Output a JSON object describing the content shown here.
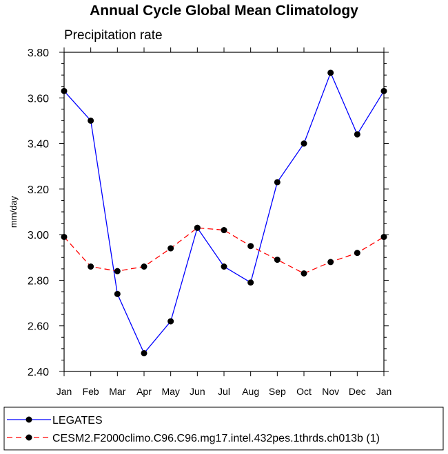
{
  "chart_data": {
    "type": "line",
    "title": "Annual Cycle Global Mean Climatology",
    "subtitle": "Precipitation rate",
    "ylabel": "mm/day",
    "xlabel": "",
    "categories": [
      "Jan",
      "Feb",
      "Mar",
      "Apr",
      "May",
      "Jun",
      "Jul",
      "Aug",
      "Sep",
      "Oct",
      "Nov",
      "Dec",
      "Jan"
    ],
    "ylim": [
      2.4,
      3.8
    ],
    "yticks": [
      "2.40",
      "2.60",
      "2.80",
      "3.00",
      "3.20",
      "3.40",
      "3.60",
      "3.80"
    ],
    "series": [
      {
        "name": "LEGATES",
        "color": "#0000ff",
        "dash": "solid",
        "values": [
          3.63,
          3.5,
          2.74,
          2.48,
          2.62,
          3.03,
          2.86,
          2.79,
          3.23,
          3.4,
          3.71,
          3.44,
          3.63
        ]
      },
      {
        "name": "CESM2.F2000climo.C96.C96.mg17.intel.432pes.1thrds.ch013b (1)",
        "color": "#ff0000",
        "dash": "dashed",
        "values": [
          2.99,
          2.86,
          2.84,
          2.86,
          2.94,
          3.03,
          3.02,
          2.95,
          2.89,
          2.83,
          2.88,
          2.92,
          2.99
        ]
      }
    ],
    "legend_position": "bottom",
    "grid": false
  }
}
